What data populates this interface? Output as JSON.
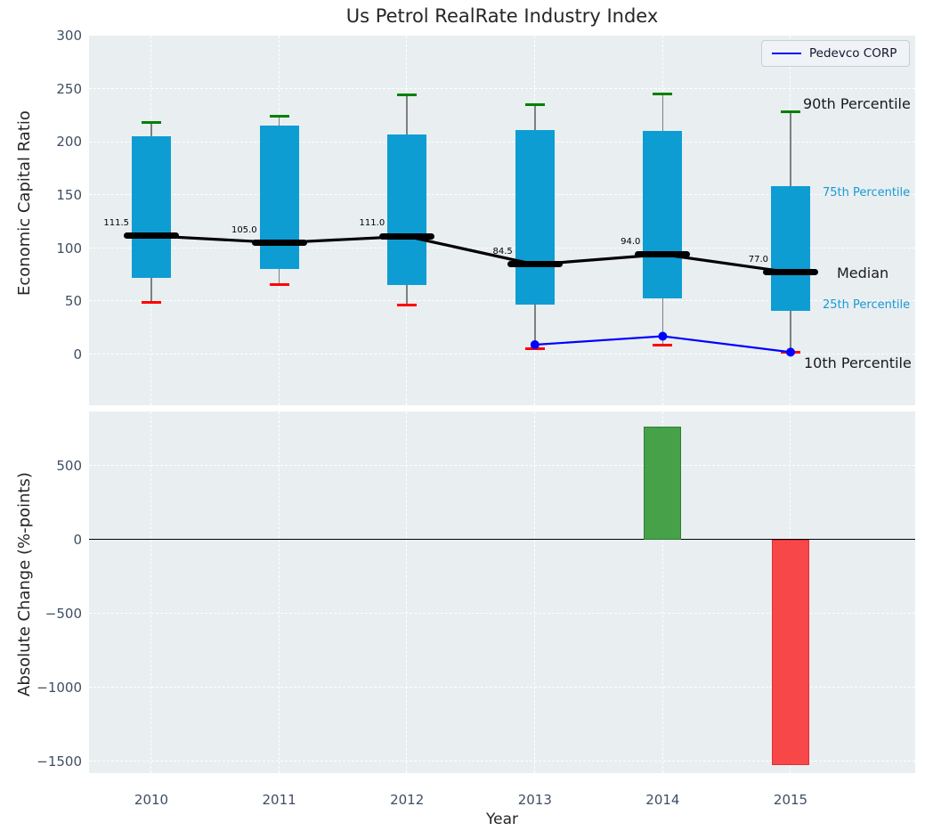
{
  "title": "Us Petrol RealRate Industry Index",
  "legend": {
    "label": "Pedevco CORP",
    "line_color": "#0000ff"
  },
  "annotations": {
    "p90": "90th Percentile",
    "p75": "75th Percentile",
    "median": "Median",
    "p25": "25th Percentile",
    "p10": "10th Percentile"
  },
  "colors": {
    "panel_bg": "#e9eef1",
    "grid": "#ffffff",
    "box_fill": "#0d9dd3",
    "whisker": "#7f7f7f",
    "p90_cap": "#008000",
    "p10_cap": "#ff0000",
    "median_line": "#000000",
    "company_line": "#0000ff",
    "bar_up": "#46a148",
    "bar_up_edge": "#2e7d32",
    "bar_down": "#f84748",
    "bar_down_edge": "#e03131",
    "tick_color": "#3f4e63",
    "zero_line": "#000000"
  },
  "chart_data": [
    {
      "type": "box",
      "title": "Us Petrol RealRate Industry Index",
      "ylabel": "Economic Capital Ratio",
      "categories": [
        2010,
        2011,
        2012,
        2013,
        2014,
        2015
      ],
      "series": [
        {
          "name": "90th Percentile",
          "values": [
            218,
            224,
            244,
            235,
            245,
            228
          ]
        },
        {
          "name": "75th Percentile",
          "values": [
            205,
            215,
            207,
            211,
            210,
            158
          ]
        },
        {
          "name": "Median",
          "values": [
            111.5,
            105.0,
            111.0,
            84.5,
            94.0,
            77.0
          ]
        },
        {
          "name": "25th Percentile",
          "values": [
            72,
            80,
            65,
            47,
            53,
            41
          ]
        },
        {
          "name": "10th Percentile",
          "values": [
            49,
            66,
            46,
            5,
            9,
            2
          ]
        },
        {
          "name": "Pedevco CORP",
          "x": [
            2013,
            2014,
            2015
          ],
          "values": [
            9,
            17,
            2
          ]
        }
      ],
      "median_labels": [
        "111.5",
        "105.0",
        "111.0",
        "84.5",
        "94.0",
        "77.0"
      ],
      "ylim": [
        -48,
        300
      ],
      "yticks": [
        300,
        250,
        200,
        150,
        100,
        50,
        0
      ],
      "grid": true,
      "legend_position": "upper right"
    },
    {
      "type": "bar",
      "ylabel": "Absolute Change (%-points)",
      "xlabel": "Year",
      "categories": [
        2010,
        2011,
        2012,
        2013,
        2014,
        2015
      ],
      "values": [
        null,
        null,
        null,
        null,
        765,
        -1525
      ],
      "ylim": [
        -1578,
        867
      ],
      "yticks": [
        500,
        0,
        -500,
        -1000,
        -1500
      ],
      "grid": true
    }
  ]
}
